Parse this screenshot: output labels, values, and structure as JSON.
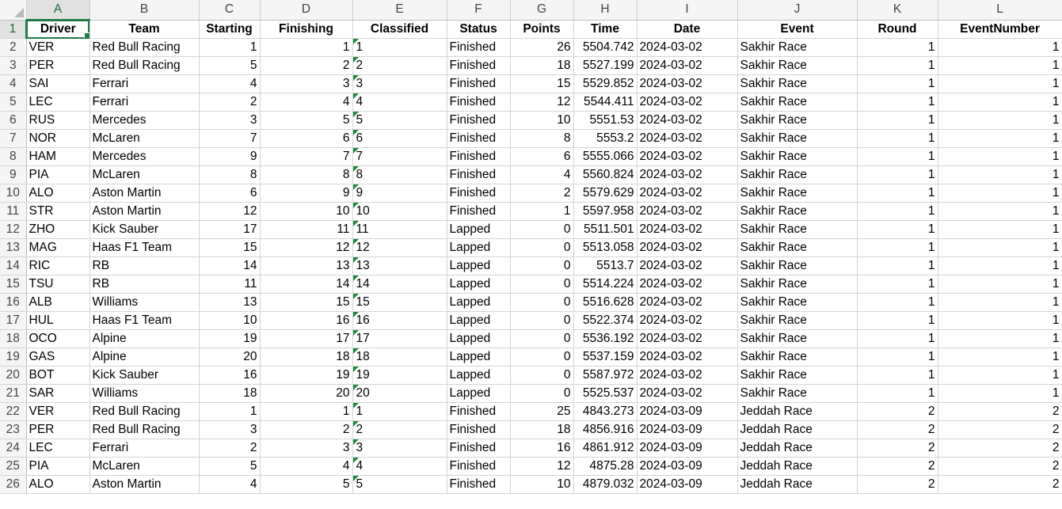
{
  "columns": [
    "A",
    "B",
    "C",
    "D",
    "E",
    "F",
    "G",
    "H",
    "I",
    "J",
    "K",
    "L"
  ],
  "header": [
    "Driver",
    "Team",
    "Starting",
    "Finishing",
    "Classified",
    "Status",
    "Points",
    "Time",
    "Date",
    "Event",
    "Round",
    "EventNumber"
  ],
  "rows": [
    [
      "VER",
      "Red Bull Racing",
      "1",
      "1",
      "1",
      "Finished",
      "26",
      "5504.742",
      "2024-03-02",
      "Sakhir Race",
      "1",
      "1"
    ],
    [
      "PER",
      "Red Bull Racing",
      "5",
      "2",
      "2",
      "Finished",
      "18",
      "5527.199",
      "2024-03-02",
      "Sakhir Race",
      "1",
      "1"
    ],
    [
      "SAI",
      "Ferrari",
      "4",
      "3",
      "3",
      "Finished",
      "15",
      "5529.852",
      "2024-03-02",
      "Sakhir Race",
      "1",
      "1"
    ],
    [
      "LEC",
      "Ferrari",
      "2",
      "4",
      "4",
      "Finished",
      "12",
      "5544.411",
      "2024-03-02",
      "Sakhir Race",
      "1",
      "1"
    ],
    [
      "RUS",
      "Mercedes",
      "3",
      "5",
      "5",
      "Finished",
      "10",
      "5551.53",
      "2024-03-02",
      "Sakhir Race",
      "1",
      "1"
    ],
    [
      "NOR",
      "McLaren",
      "7",
      "6",
      "6",
      "Finished",
      "8",
      "5553.2",
      "2024-03-02",
      "Sakhir Race",
      "1",
      "1"
    ],
    [
      "HAM",
      "Mercedes",
      "9",
      "7",
      "7",
      "Finished",
      "6",
      "5555.066",
      "2024-03-02",
      "Sakhir Race",
      "1",
      "1"
    ],
    [
      "PIA",
      "McLaren",
      "8",
      "8",
      "8",
      "Finished",
      "4",
      "5560.824",
      "2024-03-02",
      "Sakhir Race",
      "1",
      "1"
    ],
    [
      "ALO",
      "Aston Martin",
      "6",
      "9",
      "9",
      "Finished",
      "2",
      "5579.629",
      "2024-03-02",
      "Sakhir Race",
      "1",
      "1"
    ],
    [
      "STR",
      "Aston Martin",
      "12",
      "10",
      "10",
      "Finished",
      "1",
      "5597.958",
      "2024-03-02",
      "Sakhir Race",
      "1",
      "1"
    ],
    [
      "ZHO",
      "Kick Sauber",
      "17",
      "11",
      "11",
      "Lapped",
      "0",
      "5511.501",
      "2024-03-02",
      "Sakhir Race",
      "1",
      "1"
    ],
    [
      "MAG",
      "Haas F1 Team",
      "15",
      "12",
      "12",
      "Lapped",
      "0",
      "5513.058",
      "2024-03-02",
      "Sakhir Race",
      "1",
      "1"
    ],
    [
      "RIC",
      "RB",
      "14",
      "13",
      "13",
      "Lapped",
      "0",
      "5513.7",
      "2024-03-02",
      "Sakhir Race",
      "1",
      "1"
    ],
    [
      "TSU",
      "RB",
      "11",
      "14",
      "14",
      "Lapped",
      "0",
      "5514.224",
      "2024-03-02",
      "Sakhir Race",
      "1",
      "1"
    ],
    [
      "ALB",
      "Williams",
      "13",
      "15",
      "15",
      "Lapped",
      "0",
      "5516.628",
      "2024-03-02",
      "Sakhir Race",
      "1",
      "1"
    ],
    [
      "HUL",
      "Haas F1 Team",
      "10",
      "16",
      "16",
      "Lapped",
      "0",
      "5522.374",
      "2024-03-02",
      "Sakhir Race",
      "1",
      "1"
    ],
    [
      "OCO",
      "Alpine",
      "19",
      "17",
      "17",
      "Lapped",
      "0",
      "5536.192",
      "2024-03-02",
      "Sakhir Race",
      "1",
      "1"
    ],
    [
      "GAS",
      "Alpine",
      "20",
      "18",
      "18",
      "Lapped",
      "0",
      "5537.159",
      "2024-03-02",
      "Sakhir Race",
      "1",
      "1"
    ],
    [
      "BOT",
      "Kick Sauber",
      "16",
      "19",
      "19",
      "Lapped",
      "0",
      "5587.972",
      "2024-03-02",
      "Sakhir Race",
      "1",
      "1"
    ],
    [
      "SAR",
      "Williams",
      "18",
      "20",
      "20",
      "Lapped",
      "0",
      "5525.537",
      "2024-03-02",
      "Sakhir Race",
      "1",
      "1"
    ],
    [
      "VER",
      "Red Bull Racing",
      "1",
      "1",
      "1",
      "Finished",
      "25",
      "4843.273",
      "2024-03-09",
      "Jeddah Race",
      "2",
      "2"
    ],
    [
      "PER",
      "Red Bull Racing",
      "3",
      "2",
      "2",
      "Finished",
      "18",
      "4856.916",
      "2024-03-09",
      "Jeddah Race",
      "2",
      "2"
    ],
    [
      "LEC",
      "Ferrari",
      "2",
      "3",
      "3",
      "Finished",
      "16",
      "4861.912",
      "2024-03-09",
      "Jeddah Race",
      "2",
      "2"
    ],
    [
      "PIA",
      "McLaren",
      "5",
      "4",
      "4",
      "Finished",
      "12",
      "4875.28",
      "2024-03-09",
      "Jeddah Race",
      "2",
      "2"
    ],
    [
      "ALO",
      "Aston Martin",
      "4",
      "5",
      "5",
      "Finished",
      "10",
      "4879.032",
      "2024-03-09",
      "Jeddah Race",
      "2",
      "2"
    ]
  ]
}
